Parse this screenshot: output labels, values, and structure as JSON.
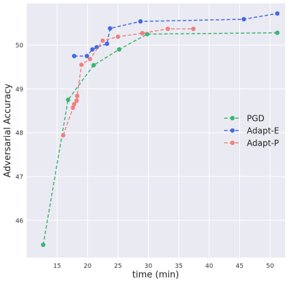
{
  "chart_data": {
    "type": "line",
    "title": "",
    "xlabel": "time (min)",
    "ylabel": "Adversarial Accuracy",
    "xlim": [
      10.0,
      52.5
    ],
    "ylim": [
      45.15,
      50.95
    ],
    "xticks": [
      15,
      20,
      25,
      30,
      35,
      40,
      45,
      50
    ],
    "yticks": [
      46,
      47,
      48,
      49,
      50
    ],
    "grid": true,
    "background": "#EAEAF2",
    "legend_position": "center-right",
    "series": [
      {
        "name": "PGD",
        "color": "#3CB371",
        "x": [
          12.7,
          16.8,
          21.0,
          25.2,
          29.8,
          51.2
        ],
        "y": [
          45.44,
          48.75,
          49.54,
          49.9,
          50.25,
          50.28
        ]
      },
      {
        "name": "Adapt-E",
        "color": "#4169E1",
        "x": [
          17.8,
          19.9,
          20.8,
          21.5,
          23.2,
          23.7,
          28.7,
          45.7,
          51.2
        ],
        "y": [
          49.75,
          49.75,
          49.9,
          49.95,
          50.03,
          50.38,
          50.54,
          50.59,
          50.72
        ]
      },
      {
        "name": "Adapt-P",
        "color": "#F08080",
        "x": [
          16.0,
          17.6,
          17.8,
          18.2,
          18.3,
          19.0,
          20.4,
          22.5,
          25.0,
          29.0,
          33.2,
          37.4
        ],
        "y": [
          47.94,
          48.57,
          48.65,
          48.73,
          48.84,
          49.55,
          49.68,
          50.1,
          50.19,
          50.27,
          50.37,
          50.37
        ]
      }
    ]
  }
}
